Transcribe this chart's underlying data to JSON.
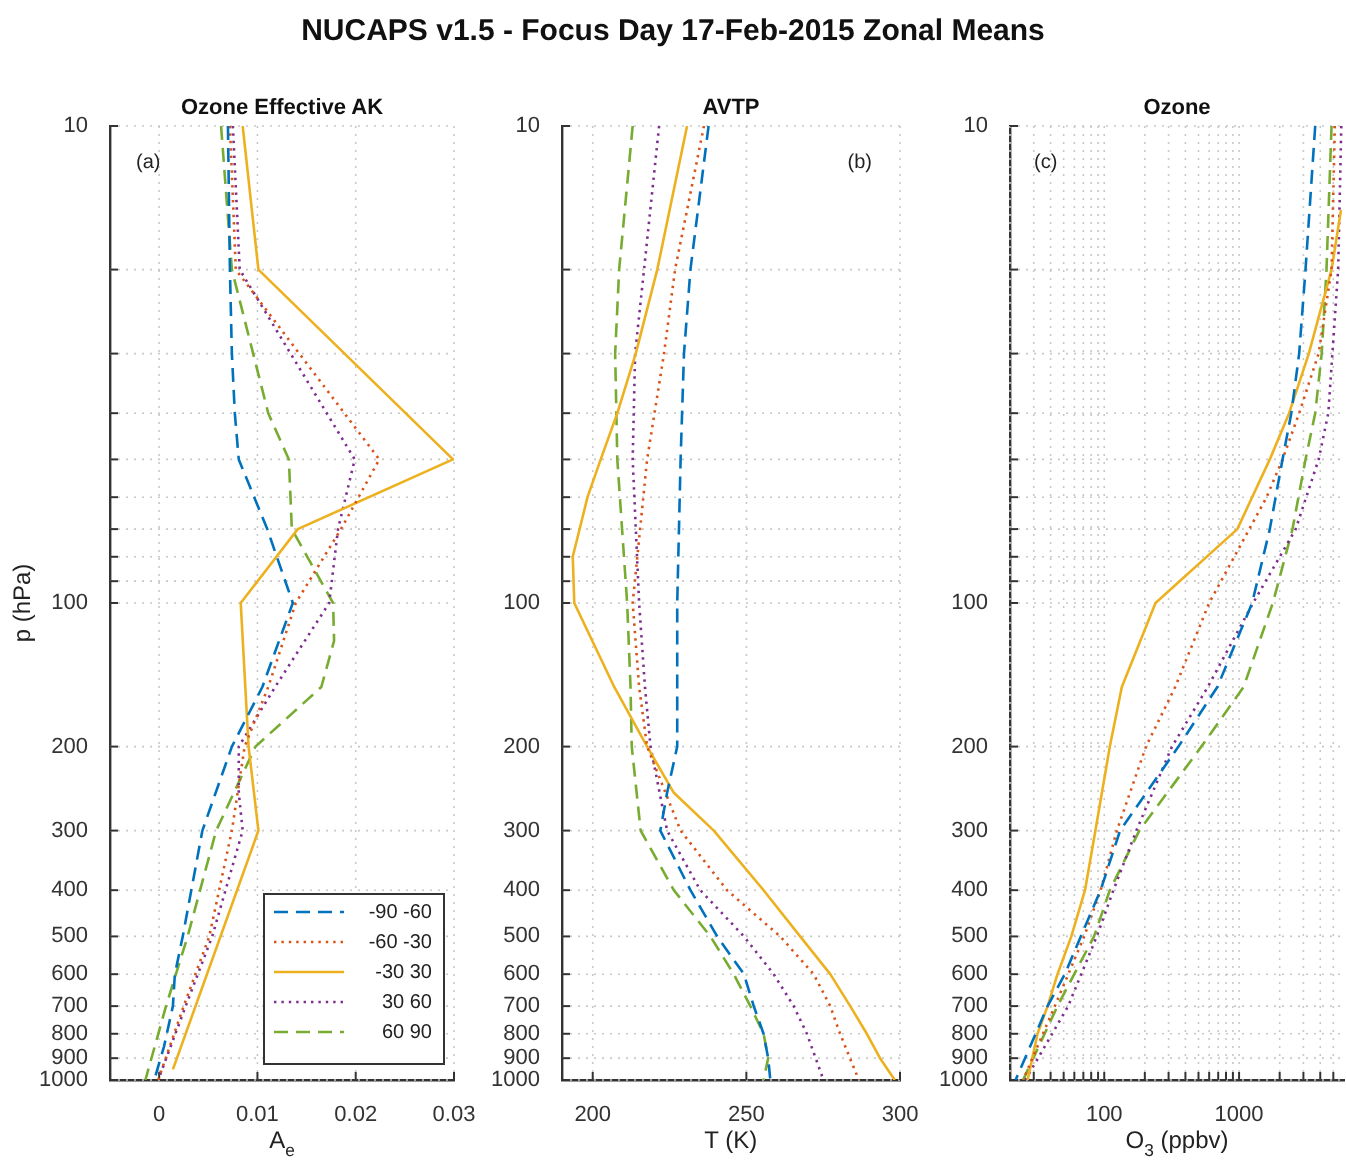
{
  "chart_data": [
    {
      "type": "line",
      "title": "Ozone Effective AK",
      "xlabel": "A$_{e}$",
      "ylabel": "p (hPa)",
      "annotations": [
        "NUCAPS v1.5 - Focus Day 17-Feb-2015 Zonal Means",
        "(a)"
      ],
      "log": "y",
      "grid": true,
      "legend": "bottom right",
      "xlim": [
        -0.005,
        0.03
      ],
      "xticks": [
        0,
        0.01,
        0.02,
        0.03
      ],
      "ylim": [
        1000,
        10
      ],
      "yticks": [
        10,
        {
          "value": 20,
          "label": null
        },
        {
          "value": 30,
          "label": null
        },
        {
          "value": 40,
          "label": null
        },
        {
          "value": 50,
          "label": null
        },
        {
          "value": 60,
          "label": null
        },
        {
          "value": 70,
          "label": null
        },
        {
          "value": 80,
          "label": null
        },
        {
          "value": 90,
          "label": null
        },
        100,
        200,
        300,
        400,
        500,
        600,
        700,
        800,
        900,
        1000
      ],
      "series": [
        {
          "name": "-90 -60",
          "color": "#0072bd",
          "line_style": "dashed",
          "x": [
            0.007,
            0.0072,
            0.0074,
            0.0077,
            0.0081,
            0.011,
            0.0136,
            0.0105,
            0.0074,
            0.0044,
            0.0024,
            0.0016,
            0.0014,
            0.0005,
            -0.0005
          ],
          "values": [
            10,
            20,
            30,
            40,
            50,
            70,
            100,
            150,
            200,
            300,
            500,
            600,
            700,
            850,
            1000
          ]
        },
        {
          "name": "-60 -30",
          "color": "#d95319",
          "line_style": "dotted",
          "x": [
            0.0072,
            0.0078,
            0.0224,
            0.0185,
            0.0139,
            0.0111,
            0.0087,
            0.0074,
            0.0051,
            0.0025,
            -0.0001
          ],
          "values": [
            10,
            20,
            50,
            70,
            100,
            150,
            200,
            300,
            500,
            700,
            1000
          ]
        },
        {
          "name": "-30 30",
          "color": "#edb120",
          "line_style": "solid",
          "x": [
            0.0085,
            0.0101,
            0.0299,
            0.0141,
            0.0083,
            0.0091,
            0.0101,
            0.0014
          ],
          "values": [
            10,
            20,
            50,
            70,
            100,
            200,
            300,
            950
          ]
        },
        {
          "name": "30 60",
          "color": "#7e2f8e",
          "line_style": "dotted",
          "x": [
            0.0075,
            0.0082,
            0.0199,
            0.0182,
            0.0173,
            0.0118,
            0.0081,
            0.0081,
            0.0085,
            0.0054,
            0.0027,
            -0.0001
          ],
          "values": [
            10,
            20,
            50,
            70,
            100,
            150,
            200,
            250,
            300,
            500,
            700,
            1000
          ]
        },
        {
          "name": "60 90",
          "color": "#77ac30",
          "line_style": "dashed",
          "x": [
            0.0063,
            0.0074,
            0.0111,
            0.0132,
            0.0135,
            0.0177,
            0.0178,
            0.0165,
            0.0098,
            0.0058,
            0.0029,
            0.0007,
            -0.0014
          ],
          "values": [
            10,
            20,
            40,
            50,
            70,
            100,
            120,
            150,
            200,
            300,
            500,
            700,
            1000
          ]
        }
      ]
    },
    {
      "type": "line",
      "title": "AVTP",
      "xlabel": "T (K)",
      "annotations": [
        "(b)"
      ],
      "log": "y",
      "grid": true,
      "xlim": [
        190,
        300
      ],
      "xticks": [
        200,
        250,
        300
      ],
      "ylim": [
        1000,
        10
      ],
      "yticks": [
        10,
        {
          "value": 20,
          "label": null
        },
        {
          "value": 30,
          "label": null
        },
        {
          "value": 40,
          "label": null
        },
        {
          "value": 50,
          "label": null
        },
        {
          "value": 60,
          "label": null
        },
        {
          "value": 70,
          "label": null
        },
        {
          "value": 80,
          "label": null
        },
        {
          "value": 90,
          "label": null
        },
        100,
        200,
        300,
        400,
        500,
        600,
        700,
        800,
        900,
        1000
      ],
      "series": [
        {
          "color": "#0072bd",
          "line_style": "dashed",
          "x": [
            237.7,
            231.8,
            229.7,
            228.6,
            227.5,
            227.5,
            224.2,
            222,
            231.8,
            240.5,
            249.2,
            252.4,
            255.6,
            257.1,
            257.8
          ],
          "values": [
            10,
            20,
            30,
            50,
            100,
            200,
            250,
            300,
            400,
            500,
            600,
            700,
            800,
            900,
            1000
          ]
        },
        {
          "color": "#d95319",
          "line_style": "dotted",
          "x": [
            236.2,
            226.8,
            223.2,
            217.7,
            213,
            215.1,
            217.7,
            228.6,
            243.7,
            261,
            271.9,
            277.3,
            280.5,
            286.6
          ],
          "values": [
            10,
            20,
            30,
            50,
            100,
            150,
            200,
            300,
            400,
            500,
            600,
            700,
            800,
            1000
          ]
        },
        {
          "color": "#edb120",
          "line_style": "solid",
          "x": [
            230.7,
            221,
            214,
            208,
            202.6,
            198.3,
            193.5,
            194,
            207,
            217.7,
            226.4,
            239.4,
            255.6,
            267.5,
            277.3,
            283.8,
            289.2,
            293.5,
            298.3
          ],
          "values": [
            10,
            20,
            30,
            40,
            50,
            60,
            80,
            100,
            150,
            200,
            250,
            300,
            400,
            500,
            600,
            700,
            800,
            900,
            1000
          ]
        },
        {
          "color": "#7e2f8e",
          "line_style": "dotted",
          "x": [
            221.6,
            216.7,
            213.8,
            213,
            215.1,
            217,
            218.8,
            224.2,
            235,
            249.2,
            258.9,
            265.4,
            269.7,
            275.1
          ],
          "values": [
            10,
            20,
            30,
            50,
            100,
            150,
            200,
            300,
            400,
            500,
            600,
            700,
            800,
            1000
          ]
        },
        {
          "color": "#77ac30",
          "line_style": "dashed",
          "x": [
            213,
            208.6,
            207.3,
            208,
            211.2,
            212.3,
            212.7,
            215.6,
            226.4,
            238.3,
            245.9,
            251.3,
            255.6,
            257.1,
            255.6
          ],
          "values": [
            10,
            20,
            30,
            50,
            100,
            150,
            200,
            300,
            400,
            500,
            600,
            700,
            800,
            900,
            1000
          ]
        }
      ]
    },
    {
      "type": "line",
      "title": "Ozone",
      "xlabel": "O$_{3}$ (ppbv)",
      "annotations": [
        "(c)"
      ],
      "log": "xy",
      "grid": true,
      "xlim": [
        20,
        6000
      ],
      "xticks": [
        {
          "value": 20,
          "label": null
        },
        {
          "value": 30,
          "label": null
        },
        {
          "value": 40,
          "label": null
        },
        {
          "value": 50,
          "label": null
        },
        {
          "value": 60,
          "label": null
        },
        {
          "value": 70,
          "label": null
        },
        {
          "value": 80,
          "label": null
        },
        {
          "value": 90,
          "label": null
        },
        100,
        {
          "value": 200,
          "label": null
        },
        {
          "value": 300,
          "label": null
        },
        {
          "value": 400,
          "label": null
        },
        {
          "value": 500,
          "label": null
        },
        {
          "value": 600,
          "label": null
        },
        {
          "value": 700,
          "label": null
        },
        {
          "value": 800,
          "label": null
        },
        {
          "value": 900,
          "label": null
        },
        1000,
        {
          "value": 2000,
          "label": null
        },
        {
          "value": 3000,
          "label": null
        },
        {
          "value": 4000,
          "label": null
        },
        {
          "value": 5000,
          "label": null
        }
      ],
      "ylim": [
        1000,
        10
      ],
      "yticks": [
        10,
        {
          "value": 20,
          "label": null
        },
        {
          "value": 30,
          "label": null
        },
        {
          "value": 40,
          "label": null
        },
        {
          "value": 50,
          "label": null
        },
        {
          "value": 60,
          "label": null
        },
        {
          "value": 70,
          "label": null
        },
        {
          "value": 80,
          "label": null
        },
        {
          "value": 90,
          "label": null
        },
        100,
        200,
        300,
        400,
        500,
        600,
        700,
        800,
        900,
        1000
      ],
      "series": [
        {
          "color": "#0072bd",
          "line_style": "dashed",
          "x": [
            3670,
            3110,
            2790,
            2440,
            2100,
            1690,
            1250,
            690,
            355,
            131,
            94,
            67,
            51,
            38,
            31,
            22
          ],
          "values": [
            10,
            20,
            30,
            40,
            50,
            70,
            100,
            150,
            200,
            300,
            400,
            500,
            600,
            700,
            800,
            1000
          ]
        },
        {
          "color": "#d95319",
          "line_style": "dotted",
          "x": [
            5130,
            4850,
            3890,
            2790,
            2100,
            1600,
            600,
            336,
            204,
            124,
            94,
            71,
            43,
            25
          ],
          "values": [
            10,
            20,
            30,
            40,
            50,
            60,
            100,
            150,
            200,
            300,
            400,
            500,
            700,
            1000
          ]
        },
        {
          "color": "#edb120",
          "line_style": "solid",
          "x": [
            5700,
            4850,
            3290,
            2350,
            1690,
            970,
            240,
            135,
            110,
            86,
            72,
            57,
            45,
            38,
            32,
            27
          ],
          "values": [
            15,
            20,
            30,
            40,
            50,
            70,
            100,
            150,
            200,
            300,
            400,
            500,
            600,
            700,
            800,
            1000
          ]
        },
        {
          "color": "#7e2f8e",
          "line_style": "dotted",
          "x": [
            5730,
            5430,
            4590,
            3890,
            2630,
            1270,
            586,
            318,
            173,
            117,
            88,
            54,
            26
          ],
          "values": [
            10,
            20,
            40,
            50,
            70,
            100,
            150,
            200,
            300,
            400,
            500,
            700,
            1000
          ]
        },
        {
          "color": "#77ac30",
          "line_style": "dashed",
          "x": [
            4850,
            4450,
            4100,
            3670,
            3110,
            2490,
            1780,
            1080,
            525,
            182,
            110,
            84,
            45,
            25
          ],
          "values": [
            10,
            20,
            30,
            40,
            50,
            70,
            100,
            150,
            200,
            300,
            400,
            500,
            700,
            1000
          ]
        }
      ]
    }
  ]
}
